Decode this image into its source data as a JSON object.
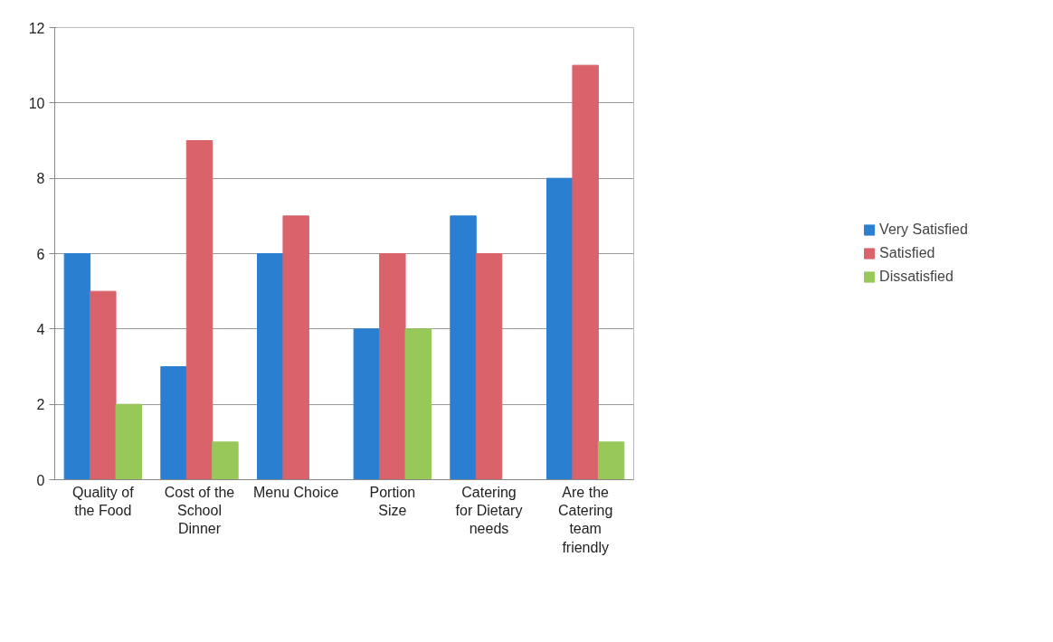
{
  "chart_data": {
    "type": "bar",
    "categories": [
      "Quality of the Food",
      "Cost of the School Dinner",
      "Menu Choice",
      "Portion Size",
      "Catering for Dietary needs",
      "Are the Catering team friendly"
    ],
    "series": [
      {
        "name": "Very Satisfied",
        "color": "#2a7fd0",
        "values": [
          6,
          3,
          6,
          4,
          7,
          8
        ]
      },
      {
        "name": "Satisfied",
        "color": "#d9626b",
        "values": [
          5,
          9,
          7,
          6,
          6,
          11
        ]
      },
      {
        "name": "Dissatisfied",
        "color": "#98c75a",
        "values": [
          2,
          1,
          0,
          4,
          0,
          1
        ]
      }
    ],
    "ylim": [
      0,
      12
    ],
    "yticks": [
      0,
      2,
      4,
      6,
      8,
      10,
      12
    ],
    "grid": "y",
    "legend": "right"
  }
}
